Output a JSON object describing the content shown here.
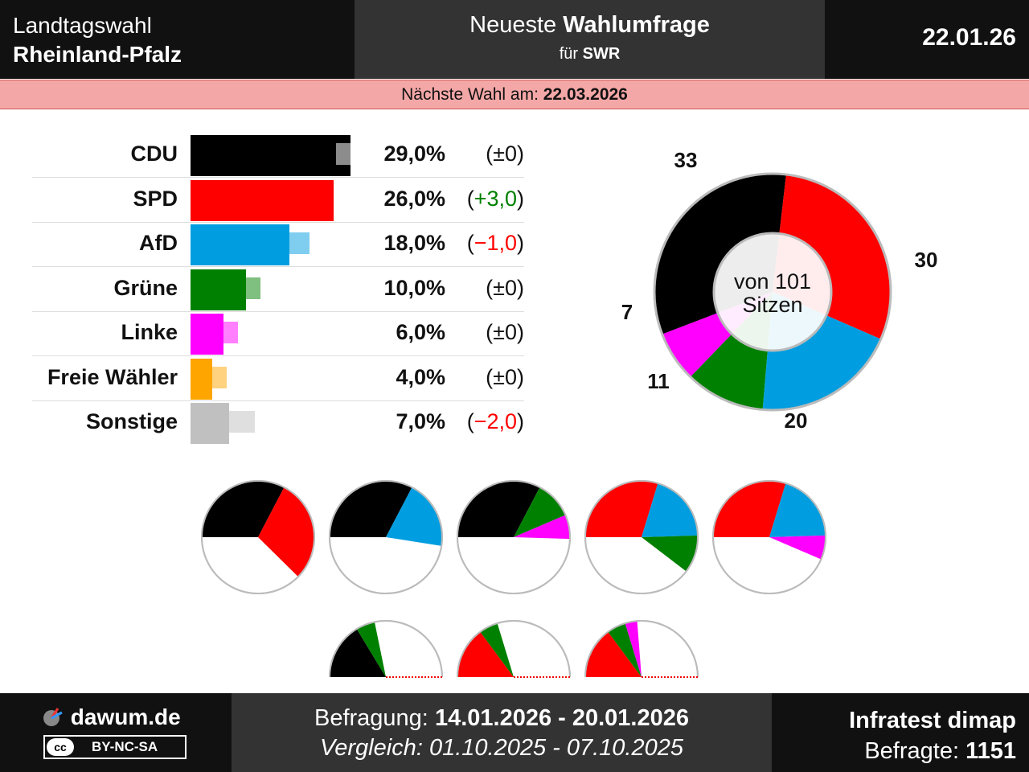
{
  "header": {
    "left_line1": "Landtagswahl",
    "left_line2": "Rheinland-Pfalz",
    "mid_line1_a": "Neueste ",
    "mid_line1_b": "Wahlumfrage",
    "mid_line2_a": "für ",
    "mid_line2_b": "SWR",
    "date": "22.01.26"
  },
  "next_election": {
    "label": "Nächste Wahl am: ",
    "date": "22.03.2026"
  },
  "chart_data": [
    {
      "type": "bar",
      "orientation": "horizontal",
      "categories": [
        "CDU",
        "SPD",
        "AfD",
        "Grüne",
        "Linke",
        "Freie Wähler",
        "Sonstige"
      ],
      "values": [
        29.0,
        26.0,
        18.0,
        10.0,
        6.0,
        4.0,
        7.0
      ],
      "previous_values": [
        29.0,
        23.0,
        19.0,
        10.0,
        6.0,
        4.0,
        9.0
      ],
      "value_labels": [
        "29,0%",
        "26,0%",
        "18,0%",
        "10,0%",
        "6,0%",
        "4,0%",
        "7,0%"
      ],
      "change_labels": [
        "(±0)",
        "(+3,0)",
        "(−1,0)",
        "(±0)",
        "(±0)",
        "(±0)",
        "(−2,0)"
      ],
      "change_dirs": [
        "zero",
        "up",
        "down",
        "zero",
        "zero",
        "zero",
        "down"
      ],
      "colors": [
        "#000000",
        "#ff0000",
        "#009ee0",
        "#008000",
        "#ff00ff",
        "#ffa500",
        "#c0c0c0"
      ]
    },
    {
      "type": "pie",
      "style": "donut",
      "center_line1": "von 101",
      "center_line2": "Sitzen",
      "slices": [
        {
          "label": "33",
          "value": 33,
          "color": "#000000"
        },
        {
          "label": "30",
          "value": 30,
          "color": "#ff0000"
        },
        {
          "label": "20",
          "value": 20,
          "color": "#009ee0"
        },
        {
          "label": "11",
          "value": 11,
          "color": "#008000"
        },
        {
          "label": "7",
          "value": 7,
          "color": "#ff00ff"
        }
      ],
      "total": 101
    },
    {
      "type": "pie",
      "description_kind": "coalition_charts",
      "total": 101,
      "coalitions": [
        {
          "parties": [
            {
              "value": 33,
              "color": "#000000"
            },
            {
              "value": 30,
              "color": "#ff0000"
            }
          ],
          "shape": "full"
        },
        {
          "parties": [
            {
              "value": 33,
              "color": "#000000"
            },
            {
              "value": 20,
              "color": "#009ee0"
            }
          ],
          "shape": "full"
        },
        {
          "parties": [
            {
              "value": 33,
              "color": "#000000"
            },
            {
              "value": 11,
              "color": "#008000"
            },
            {
              "value": 7,
              "color": "#ff00ff"
            }
          ],
          "shape": "full"
        },
        {
          "parties": [
            {
              "value": 30,
              "color": "#ff0000"
            },
            {
              "value": 20,
              "color": "#009ee0"
            },
            {
              "value": 11,
              "color": "#008000"
            }
          ],
          "shape": "full"
        },
        {
          "parties": [
            {
              "value": 30,
              "color": "#ff0000"
            },
            {
              "value": 20,
              "color": "#009ee0"
            },
            {
              "value": 7,
              "color": "#ff00ff"
            }
          ],
          "shape": "full"
        },
        {
          "parties": [
            {
              "value": 33,
              "color": "#000000"
            },
            {
              "value": 11,
              "color": "#008000"
            }
          ],
          "shape": "half"
        },
        {
          "parties": [
            {
              "value": 30,
              "color": "#ff0000"
            },
            {
              "value": 11,
              "color": "#008000"
            }
          ],
          "shape": "half"
        },
        {
          "parties": [
            {
              "value": 30,
              "color": "#ff0000"
            },
            {
              "value": 11,
              "color": "#008000"
            },
            {
              "value": 7,
              "color": "#ff00ff"
            }
          ],
          "shape": "half"
        }
      ]
    }
  ],
  "footer": {
    "site": "dawum.de",
    "license": "BY-NC-SA",
    "cc_mark": "cc",
    "survey_label": "Befragung: ",
    "survey_period": "14.01.2026 - 20.01.2026",
    "compare_label": "Vergleich: ",
    "compare_period": "01.10.2025 - 07.10.2025",
    "institute": "Infratest dimap",
    "respondents_label": "Befragte: ",
    "respondents": "1151"
  },
  "colors": {
    "up": "#008000",
    "down": "#ff0000",
    "header_bg": "#111111",
    "header_mid_bg": "#333333",
    "next_bar_bg": "#f4a7a7"
  }
}
